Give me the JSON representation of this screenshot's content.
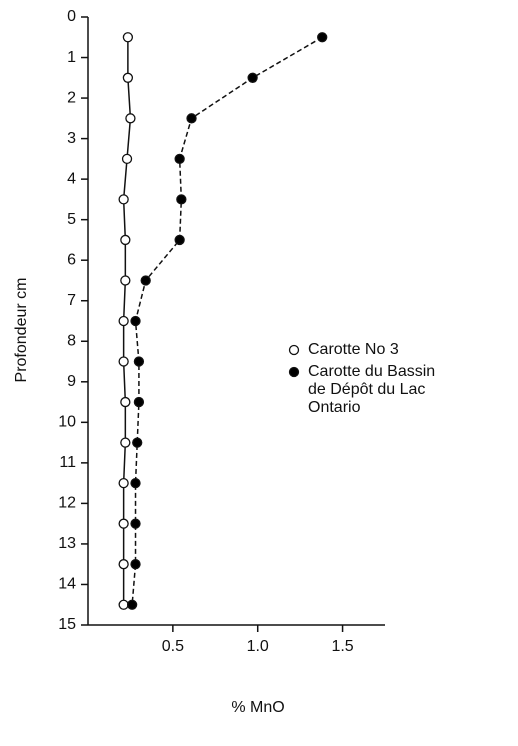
{
  "chart_data": {
    "type": "line",
    "y_label": "Profondeur cm",
    "x_label": "% MnO",
    "y": [
      0.5,
      1.5,
      2.5,
      3.5,
      4.5,
      5.5,
      6.5,
      7.5,
      8.5,
      9.5,
      10.5,
      11.5,
      12.5,
      13.5,
      14.5
    ],
    "series": [
      {
        "name": "Carotte No 3",
        "color": "#ffffff",
        "dash": false,
        "x": [
          0.235,
          0.235,
          0.25,
          0.23,
          0.21,
          0.22,
          0.22,
          0.21,
          0.21,
          0.22,
          0.22,
          0.21,
          0.21,
          0.21,
          0.21
        ]
      },
      {
        "name": "Carotte du Bassin de Dépôt du Lac Ontario",
        "color": "#000000",
        "dash": true,
        "x": [
          1.38,
          0.97,
          0.61,
          0.54,
          0.55,
          0.54,
          0.34,
          0.28,
          0.3,
          0.3,
          0.29,
          0.28,
          0.28,
          0.28,
          0.26
        ]
      }
    ],
    "ylim": [
      0,
      15
    ],
    "yticks": [
      0,
      1,
      2,
      3,
      4,
      5,
      6,
      7,
      8,
      9,
      10,
      11,
      12,
      13,
      14,
      15
    ],
    "y_inverted": true,
    "xlim": [
      0,
      1.75
    ],
    "xticks": [
      0.5,
      {
        "value": 1,
        "label": "1.0"
      },
      1.5
    ],
    "grid": false
  }
}
